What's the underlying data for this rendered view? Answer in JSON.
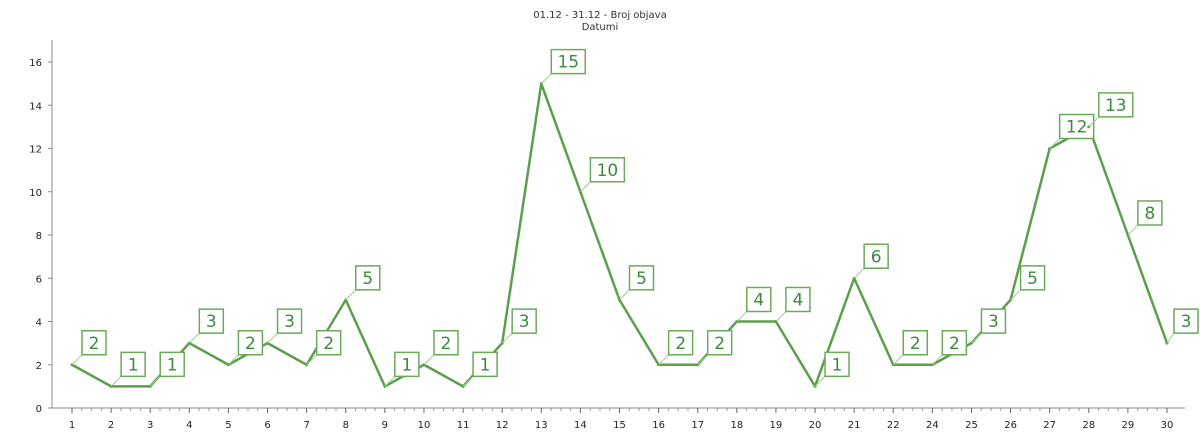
{
  "chart_data": {
    "type": "line",
    "title": "01.12 - 31.12 - Broj objava",
    "subtitle": "Datumi",
    "xlabel": "",
    "ylabel": "",
    "ylim": [
      0,
      16
    ],
    "yticks": [
      0,
      2,
      4,
      6,
      8,
      10,
      12,
      14,
      16
    ],
    "categories": [
      "1",
      "2",
      "3",
      "4",
      "5",
      "6",
      "7",
      "8",
      "9",
      "10",
      "11",
      "12",
      "13",
      "14",
      "15",
      "16",
      "17",
      "18",
      "19",
      "20",
      "21",
      "22",
      "24",
      "25",
      "26",
      "27",
      "28",
      "29",
      "30"
    ],
    "series": [
      {
        "name": "",
        "color": "#5aa04a",
        "values": [
          2,
          1,
          1,
          3,
          2,
          3,
          2,
          5,
          1,
          2,
          1,
          3,
          15,
          10,
          5,
          2,
          2,
          4,
          4,
          1,
          6,
          2,
          2,
          3,
          5,
          12,
          13,
          8,
          3
        ]
      }
    ],
    "grid": false,
    "legend": "none"
  }
}
